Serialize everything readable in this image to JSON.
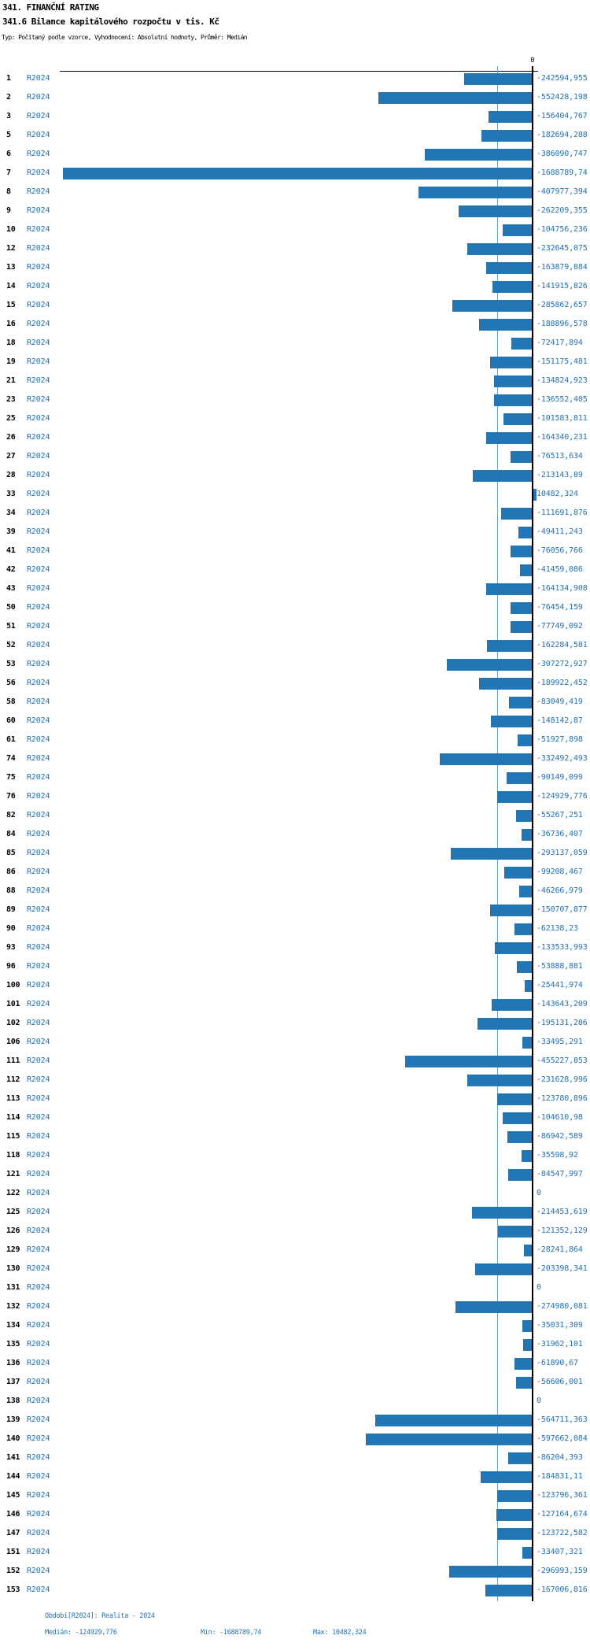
{
  "header": {
    "title": "341. FINANČNÍ RATING",
    "subtitle": "341.6 Bilance kapitálového rozpočtu v tis. Kč",
    "meta": "Typ: Počítaný podle vzorce, Vyhodnocení: Absolutní hodnoty, Průměr: Medián"
  },
  "chart_data": {
    "type": "bar",
    "orientation": "horizontal",
    "title": "341.6 Bilance kapitálového rozpočtu v tis. Kč",
    "unit": "tis. Kč",
    "series_name": "R2024",
    "zero_tick_label": "0",
    "xlim": [
      -1688789.74,
      10482.324
    ],
    "median": -124929.776,
    "min": -1688789.74,
    "max": 10482.324,
    "colors": {
      "bar": "#2176b5",
      "median_line": "#66a3cf",
      "text_blue": "#2471b0",
      "axis": "#000000"
    },
    "rows": [
      {
        "num": "1",
        "value": -242594.955,
        "label": "-242594,955"
      },
      {
        "num": "2",
        "value": -552428.198,
        "label": "-552428,198"
      },
      {
        "num": "3",
        "value": -156404.767,
        "label": "-156404,767"
      },
      {
        "num": "5",
        "value": -182694.288,
        "label": "-182694,288"
      },
      {
        "num": "6",
        "value": -386090.747,
        "label": "-386090,747"
      },
      {
        "num": "7",
        "value": -1688789.74,
        "label": "-1688789,74"
      },
      {
        "num": "8",
        "value": -407977.394,
        "label": "-407977,394"
      },
      {
        "num": "9",
        "value": -262209.355,
        "label": "-262209,355"
      },
      {
        "num": "10",
        "value": -104756.236,
        "label": "-104756,236"
      },
      {
        "num": "12",
        "value": -232645.075,
        "label": "-232645,075"
      },
      {
        "num": "13",
        "value": -163879.884,
        "label": "-163879,884"
      },
      {
        "num": "14",
        "value": -141915.826,
        "label": "-141915,826"
      },
      {
        "num": "15",
        "value": -285862.657,
        "label": "-285862,657"
      },
      {
        "num": "16",
        "value": -188896.578,
        "label": "-188896,578"
      },
      {
        "num": "18",
        "value": -72417.894,
        "label": "-72417,894"
      },
      {
        "num": "19",
        "value": -151175.481,
        "label": "-151175,481"
      },
      {
        "num": "21",
        "value": -134824.923,
        "label": "-134824,923"
      },
      {
        "num": "23",
        "value": -136552.405,
        "label": "-136552,405"
      },
      {
        "num": "25",
        "value": -101583.811,
        "label": "-101583,811"
      },
      {
        "num": "26",
        "value": -164340.231,
        "label": "-164340,231"
      },
      {
        "num": "27",
        "value": -76513.634,
        "label": "-76513,634"
      },
      {
        "num": "28",
        "value": -213143.89,
        "label": "-213143,89"
      },
      {
        "num": "33",
        "value": 10482.324,
        "label": "10482,324"
      },
      {
        "num": "34",
        "value": -111691.876,
        "label": "-111691,876"
      },
      {
        "num": "39",
        "value": -49411.243,
        "label": "-49411,243"
      },
      {
        "num": "41",
        "value": -76056.766,
        "label": "-76056,766"
      },
      {
        "num": "42",
        "value": -41459.086,
        "label": "-41459,086"
      },
      {
        "num": "43",
        "value": -164134.908,
        "label": "-164134,908"
      },
      {
        "num": "50",
        "value": -76454.159,
        "label": "-76454,159"
      },
      {
        "num": "51",
        "value": -77749.092,
        "label": "-77749,092"
      },
      {
        "num": "52",
        "value": -162284.581,
        "label": "-162284,581"
      },
      {
        "num": "53",
        "value": -307272.927,
        "label": "-307272,927"
      },
      {
        "num": "56",
        "value": -189922.452,
        "label": "-189922,452"
      },
      {
        "num": "58",
        "value": -83049.419,
        "label": "-83049,419"
      },
      {
        "num": "60",
        "value": -148142.87,
        "label": "-148142,87"
      },
      {
        "num": "61",
        "value": -51927.898,
        "label": "-51927,898"
      },
      {
        "num": "74",
        "value": -332492.493,
        "label": "-332492,493"
      },
      {
        "num": "75",
        "value": -90149.099,
        "label": "-90149,099"
      },
      {
        "num": "76",
        "value": -124929.776,
        "label": "-124929,776"
      },
      {
        "num": "82",
        "value": -55267.251,
        "label": "-55267,251"
      },
      {
        "num": "84",
        "value": -36736.407,
        "label": "-36736,407"
      },
      {
        "num": "85",
        "value": -293137.059,
        "label": "-293137,059"
      },
      {
        "num": "86",
        "value": -99208.467,
        "label": "-99208,467"
      },
      {
        "num": "88",
        "value": -46266.979,
        "label": "-46266,979"
      },
      {
        "num": "89",
        "value": -150707.877,
        "label": "-150707,877"
      },
      {
        "num": "90",
        "value": -62138.23,
        "label": "-62138,23"
      },
      {
        "num": "93",
        "value": -133533.993,
        "label": "-133533,993"
      },
      {
        "num": "96",
        "value": -53888.881,
        "label": "-53888,881"
      },
      {
        "num": "100",
        "value": -25441.974,
        "label": "-25441,974"
      },
      {
        "num": "101",
        "value": -143643.209,
        "label": "-143643,209"
      },
      {
        "num": "102",
        "value": -195131.286,
        "label": "-195131,286"
      },
      {
        "num": "106",
        "value": -33495.291,
        "label": "-33495,291"
      },
      {
        "num": "111",
        "value": -455227.853,
        "label": "-455227,853"
      },
      {
        "num": "112",
        "value": -231628.996,
        "label": "-231628,996"
      },
      {
        "num": "113",
        "value": -123780.896,
        "label": "-123780,896"
      },
      {
        "num": "114",
        "value": -104610.98,
        "label": "-104610,98"
      },
      {
        "num": "115",
        "value": -86942.589,
        "label": "-86942,589"
      },
      {
        "num": "118",
        "value": -35598.92,
        "label": "-35598,92"
      },
      {
        "num": "121",
        "value": -84547.997,
        "label": "-84547,997"
      },
      {
        "num": "122",
        "value": 0,
        "label": "0"
      },
      {
        "num": "125",
        "value": -214453.619,
        "label": "-214453,619"
      },
      {
        "num": "126",
        "value": -121352.129,
        "label": "-121352,129"
      },
      {
        "num": "129",
        "value": -28241.864,
        "label": "-28241,864"
      },
      {
        "num": "130",
        "value": -203398.341,
        "label": "-203398,341"
      },
      {
        "num": "131",
        "value": 0,
        "label": "0"
      },
      {
        "num": "132",
        "value": -274980.081,
        "label": "-274980,081"
      },
      {
        "num": "134",
        "value": -35031.309,
        "label": "-35031,309"
      },
      {
        "num": "135",
        "value": -31962.101,
        "label": "-31962,101"
      },
      {
        "num": "136",
        "value": -61890.67,
        "label": "-61890,67"
      },
      {
        "num": "137",
        "value": -56606.001,
        "label": "-56606,001"
      },
      {
        "num": "138",
        "value": 0,
        "label": "0"
      },
      {
        "num": "139",
        "value": -564711.363,
        "label": "-564711,363"
      },
      {
        "num": "140",
        "value": -597662.084,
        "label": "-597662,084"
      },
      {
        "num": "141",
        "value": -86204.393,
        "label": "-86204,393"
      },
      {
        "num": "144",
        "value": -184831.11,
        "label": "-184831,11"
      },
      {
        "num": "145",
        "value": -123796.361,
        "label": "-123796,361"
      },
      {
        "num": "146",
        "value": -127164.674,
        "label": "-127164,674"
      },
      {
        "num": "147",
        "value": -123722.582,
        "label": "-123722,582"
      },
      {
        "num": "151",
        "value": -33407.321,
        "label": "-33407,321"
      },
      {
        "num": "152",
        "value": -296993.159,
        "label": "-296993,159"
      },
      {
        "num": "153",
        "value": -167006.816,
        "label": "-167006,816"
      }
    ]
  },
  "footer": {
    "period": "Období[R2024]: Realita - 2024",
    "median": "Medián: -124929,776",
    "min": "Min: -1688789,74",
    "max": "Max: 10482,324"
  }
}
